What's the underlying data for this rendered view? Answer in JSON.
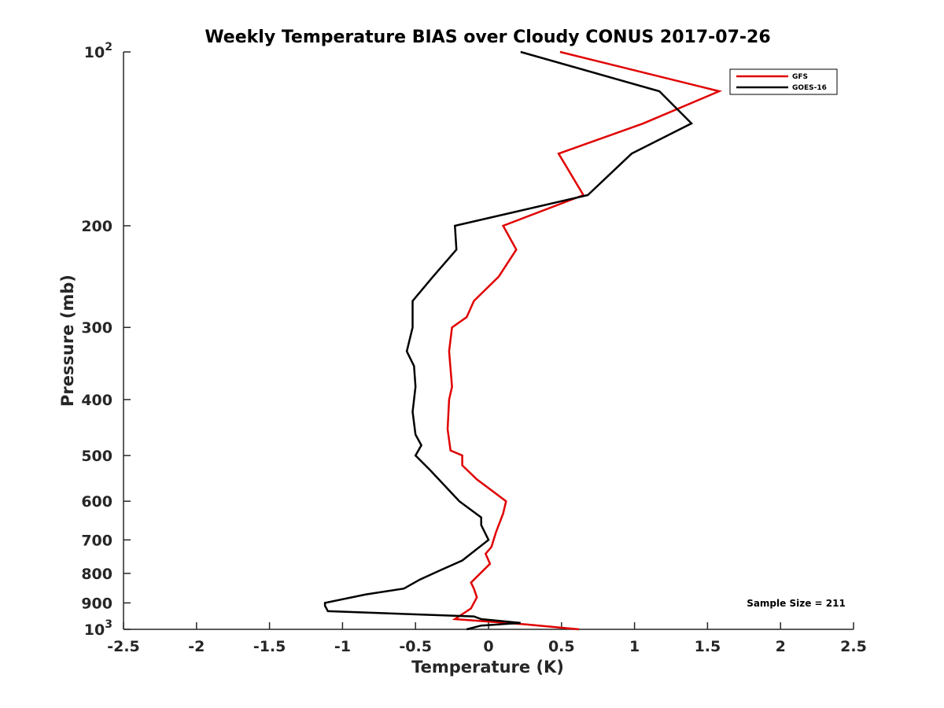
{
  "chart_data": {
    "type": "line",
    "title": "Weekly Temperature BIAS over Cloudy CONUS 2017-07-26",
    "xlabel": "Temperature (K)",
    "ylabel": "Pressure (mb)",
    "xlim": [
      -2.5,
      2.5
    ],
    "ylim": [
      100,
      1000
    ],
    "y_scale": "log",
    "y_reversed": true,
    "grid": false,
    "legend_position": "top-right",
    "x_ticks": [
      "-2.5",
      "-2",
      "-1.5",
      "-1",
      "-0.5",
      "0",
      "0.5",
      "1",
      "1.5",
      "2",
      "2.5"
    ],
    "x_tick_values": [
      -2.5,
      -2,
      -1.5,
      -1,
      -0.5,
      0,
      0.5,
      1,
      1.5,
      2,
      2.5
    ],
    "y_ticks": [
      {
        "value": 100,
        "label": "10",
        "sup": "2"
      },
      {
        "value": 200,
        "label": "200",
        "sup": ""
      },
      {
        "value": 300,
        "label": "300",
        "sup": ""
      },
      {
        "value": 400,
        "label": "400",
        "sup": ""
      },
      {
        "value": 500,
        "label": "500",
        "sup": ""
      },
      {
        "value": 600,
        "label": "600",
        "sup": ""
      },
      {
        "value": 700,
        "label": "700",
        "sup": ""
      },
      {
        "value": 800,
        "label": "800",
        "sup": ""
      },
      {
        "value": 900,
        "label": "900",
        "sup": ""
      },
      {
        "value": 1000,
        "label": "10",
        "sup": "3"
      }
    ],
    "annotation": "Sample Size = 211",
    "series": [
      {
        "name": "GFS",
        "color": "#e00000",
        "points": [
          [
            0.49,
            100
          ],
          [
            1.58,
            117
          ],
          [
            1.06,
            133
          ],
          [
            0.48,
            150
          ],
          [
            0.65,
            177
          ],
          [
            0.1,
            200
          ],
          [
            0.19,
            220
          ],
          [
            0.07,
            245
          ],
          [
            -0.1,
            270
          ],
          [
            -0.15,
            288
          ],
          [
            -0.25,
            300
          ],
          [
            -0.27,
            330
          ],
          [
            -0.25,
            380
          ],
          [
            -0.27,
            400
          ],
          [
            -0.28,
            450
          ],
          [
            -0.26,
            490
          ],
          [
            -0.18,
            500
          ],
          [
            -0.18,
            520
          ],
          [
            -0.08,
            550
          ],
          [
            0.12,
            600
          ],
          [
            0.1,
            630
          ],
          [
            0.05,
            680
          ],
          [
            0.02,
            720
          ],
          [
            -0.02,
            740
          ],
          [
            0.01,
            770
          ],
          [
            -0.12,
            830
          ],
          [
            -0.1,
            850
          ],
          [
            -0.08,
            880
          ],
          [
            -0.12,
            920
          ],
          [
            -0.23,
            960
          ],
          [
            0.25,
            980
          ],
          [
            0.62,
            1000
          ]
        ]
      },
      {
        "name": "GOES-16",
        "color": "#000000",
        "points": [
          [
            0.22,
            100
          ],
          [
            1.17,
            117
          ],
          [
            1.39,
            133
          ],
          [
            0.98,
            150
          ],
          [
            0.68,
            177
          ],
          [
            -0.23,
            200
          ],
          [
            -0.22,
            220
          ],
          [
            -0.38,
            245
          ],
          [
            -0.52,
            270
          ],
          [
            -0.52,
            300
          ],
          [
            -0.56,
            330
          ],
          [
            -0.51,
            350
          ],
          [
            -0.5,
            380
          ],
          [
            -0.52,
            420
          ],
          [
            -0.5,
            460
          ],
          [
            -0.46,
            480
          ],
          [
            -0.5,
            500
          ],
          [
            -0.4,
            530
          ],
          [
            -0.2,
            600
          ],
          [
            -0.05,
            640
          ],
          [
            -0.05,
            660
          ],
          [
            0,
            700
          ],
          [
            -0.18,
            760
          ],
          [
            -0.33,
            790
          ],
          [
            -0.47,
            820
          ],
          [
            -0.58,
            850
          ],
          [
            -0.84,
            870
          ],
          [
            -1.12,
            900
          ],
          [
            -1.12,
            910
          ],
          [
            -1.1,
            930
          ],
          [
            -0.1,
            950
          ],
          [
            -0.05,
            960
          ],
          [
            0.22,
            975
          ],
          [
            -0.05,
            985
          ],
          [
            -0.15,
            1000
          ]
        ]
      }
    ]
  }
}
